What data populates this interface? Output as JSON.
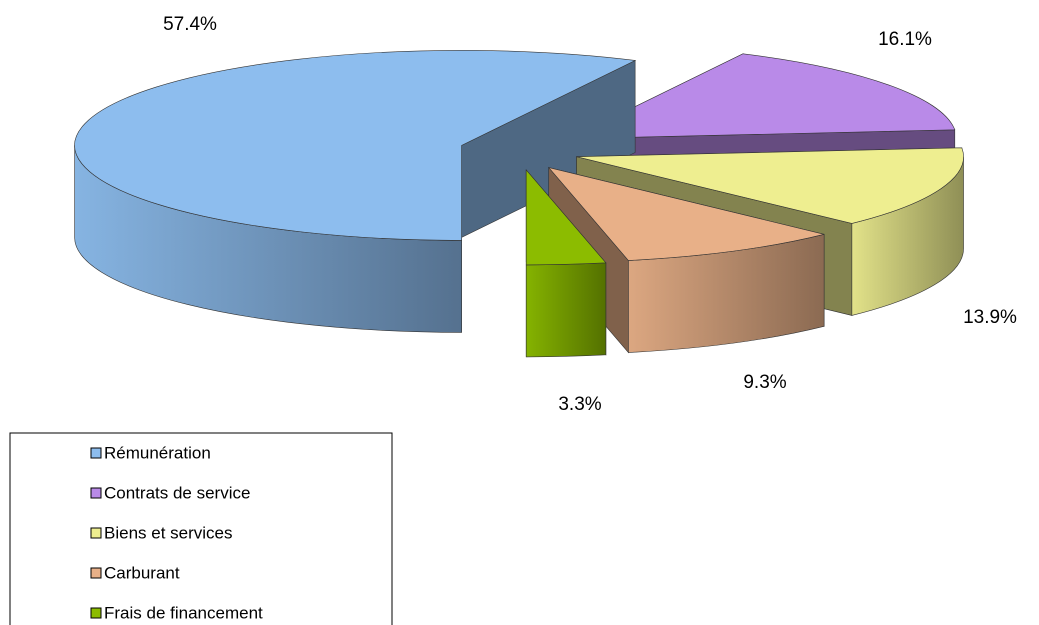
{
  "chart_data": {
    "type": "pie",
    "categories": [
      "Rémunération",
      "Contrats de service",
      "Biens et services",
      "Carburant",
      "Frais de financement"
    ],
    "values": [
      57.4,
      16.1,
      13.9,
      9.3,
      3.3
    ],
    "value_labels": [
      "57.4%",
      "16.1%",
      "13.9%",
      "9.3%",
      "3.3%"
    ],
    "colors": [
      "#8dbdee",
      "#b98ae8",
      "#eeee90",
      "#e8b088",
      "#8cbc00"
    ],
    "legend": "bottom-left"
  }
}
